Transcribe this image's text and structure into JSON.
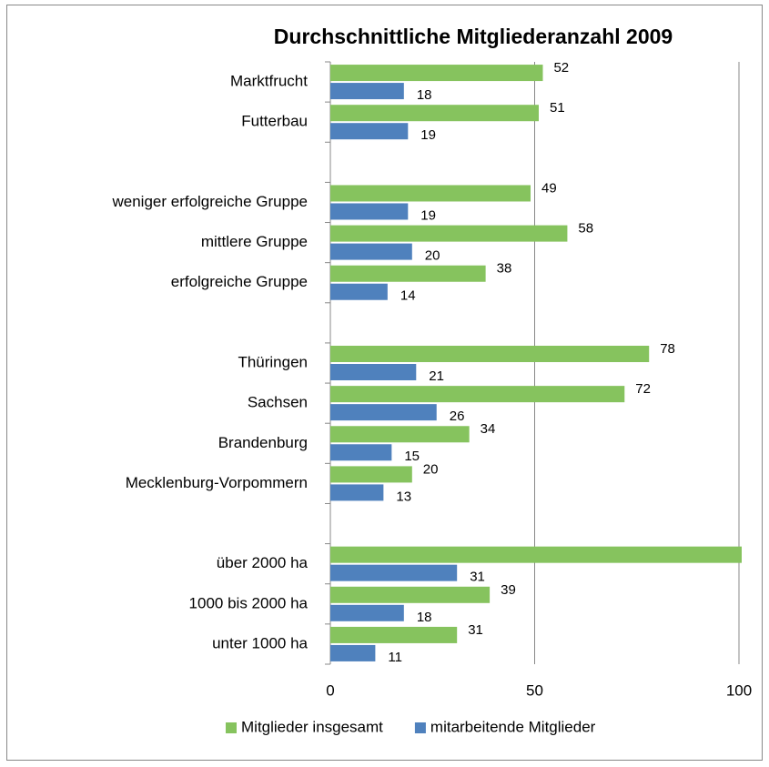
{
  "chart_data": {
    "type": "bar",
    "orientation": "horizontal",
    "title": "Durchschnittliche Mitgliederanzahl 2009",
    "categories": [
      "Marktfrucht",
      "Futterbau",
      null,
      "weniger erfolgreiche Gruppe",
      "mittlere Gruppe",
      "erfolgreiche Gruppe",
      null,
      "Thüringen",
      "Sachsen",
      "Brandenburg",
      "Mecklenburg-Vorpommern",
      null,
      "über 2000  ha",
      "1000 bis 2000 ha",
      "unter 1000 ha"
    ],
    "series": [
      {
        "name": "Mitglieder insgesamt",
        "color": "#86c35e",
        "values": [
          52,
          51,
          null,
          49,
          58,
          38,
          null,
          78,
          72,
          34,
          20,
          null,
          105,
          39,
          31
        ]
      },
      {
        "name": "mitarbeitende Mitglieder",
        "color": "#4f81bd",
        "values": [
          18,
          19,
          null,
          19,
          20,
          14,
          null,
          21,
          26,
          15,
          13,
          null,
          31,
          18,
          11
        ]
      }
    ],
    "xlim": [
      0,
      100
    ],
    "xticks": [
      0,
      50,
      100
    ],
    "grid": true,
    "legend": "bottom"
  }
}
